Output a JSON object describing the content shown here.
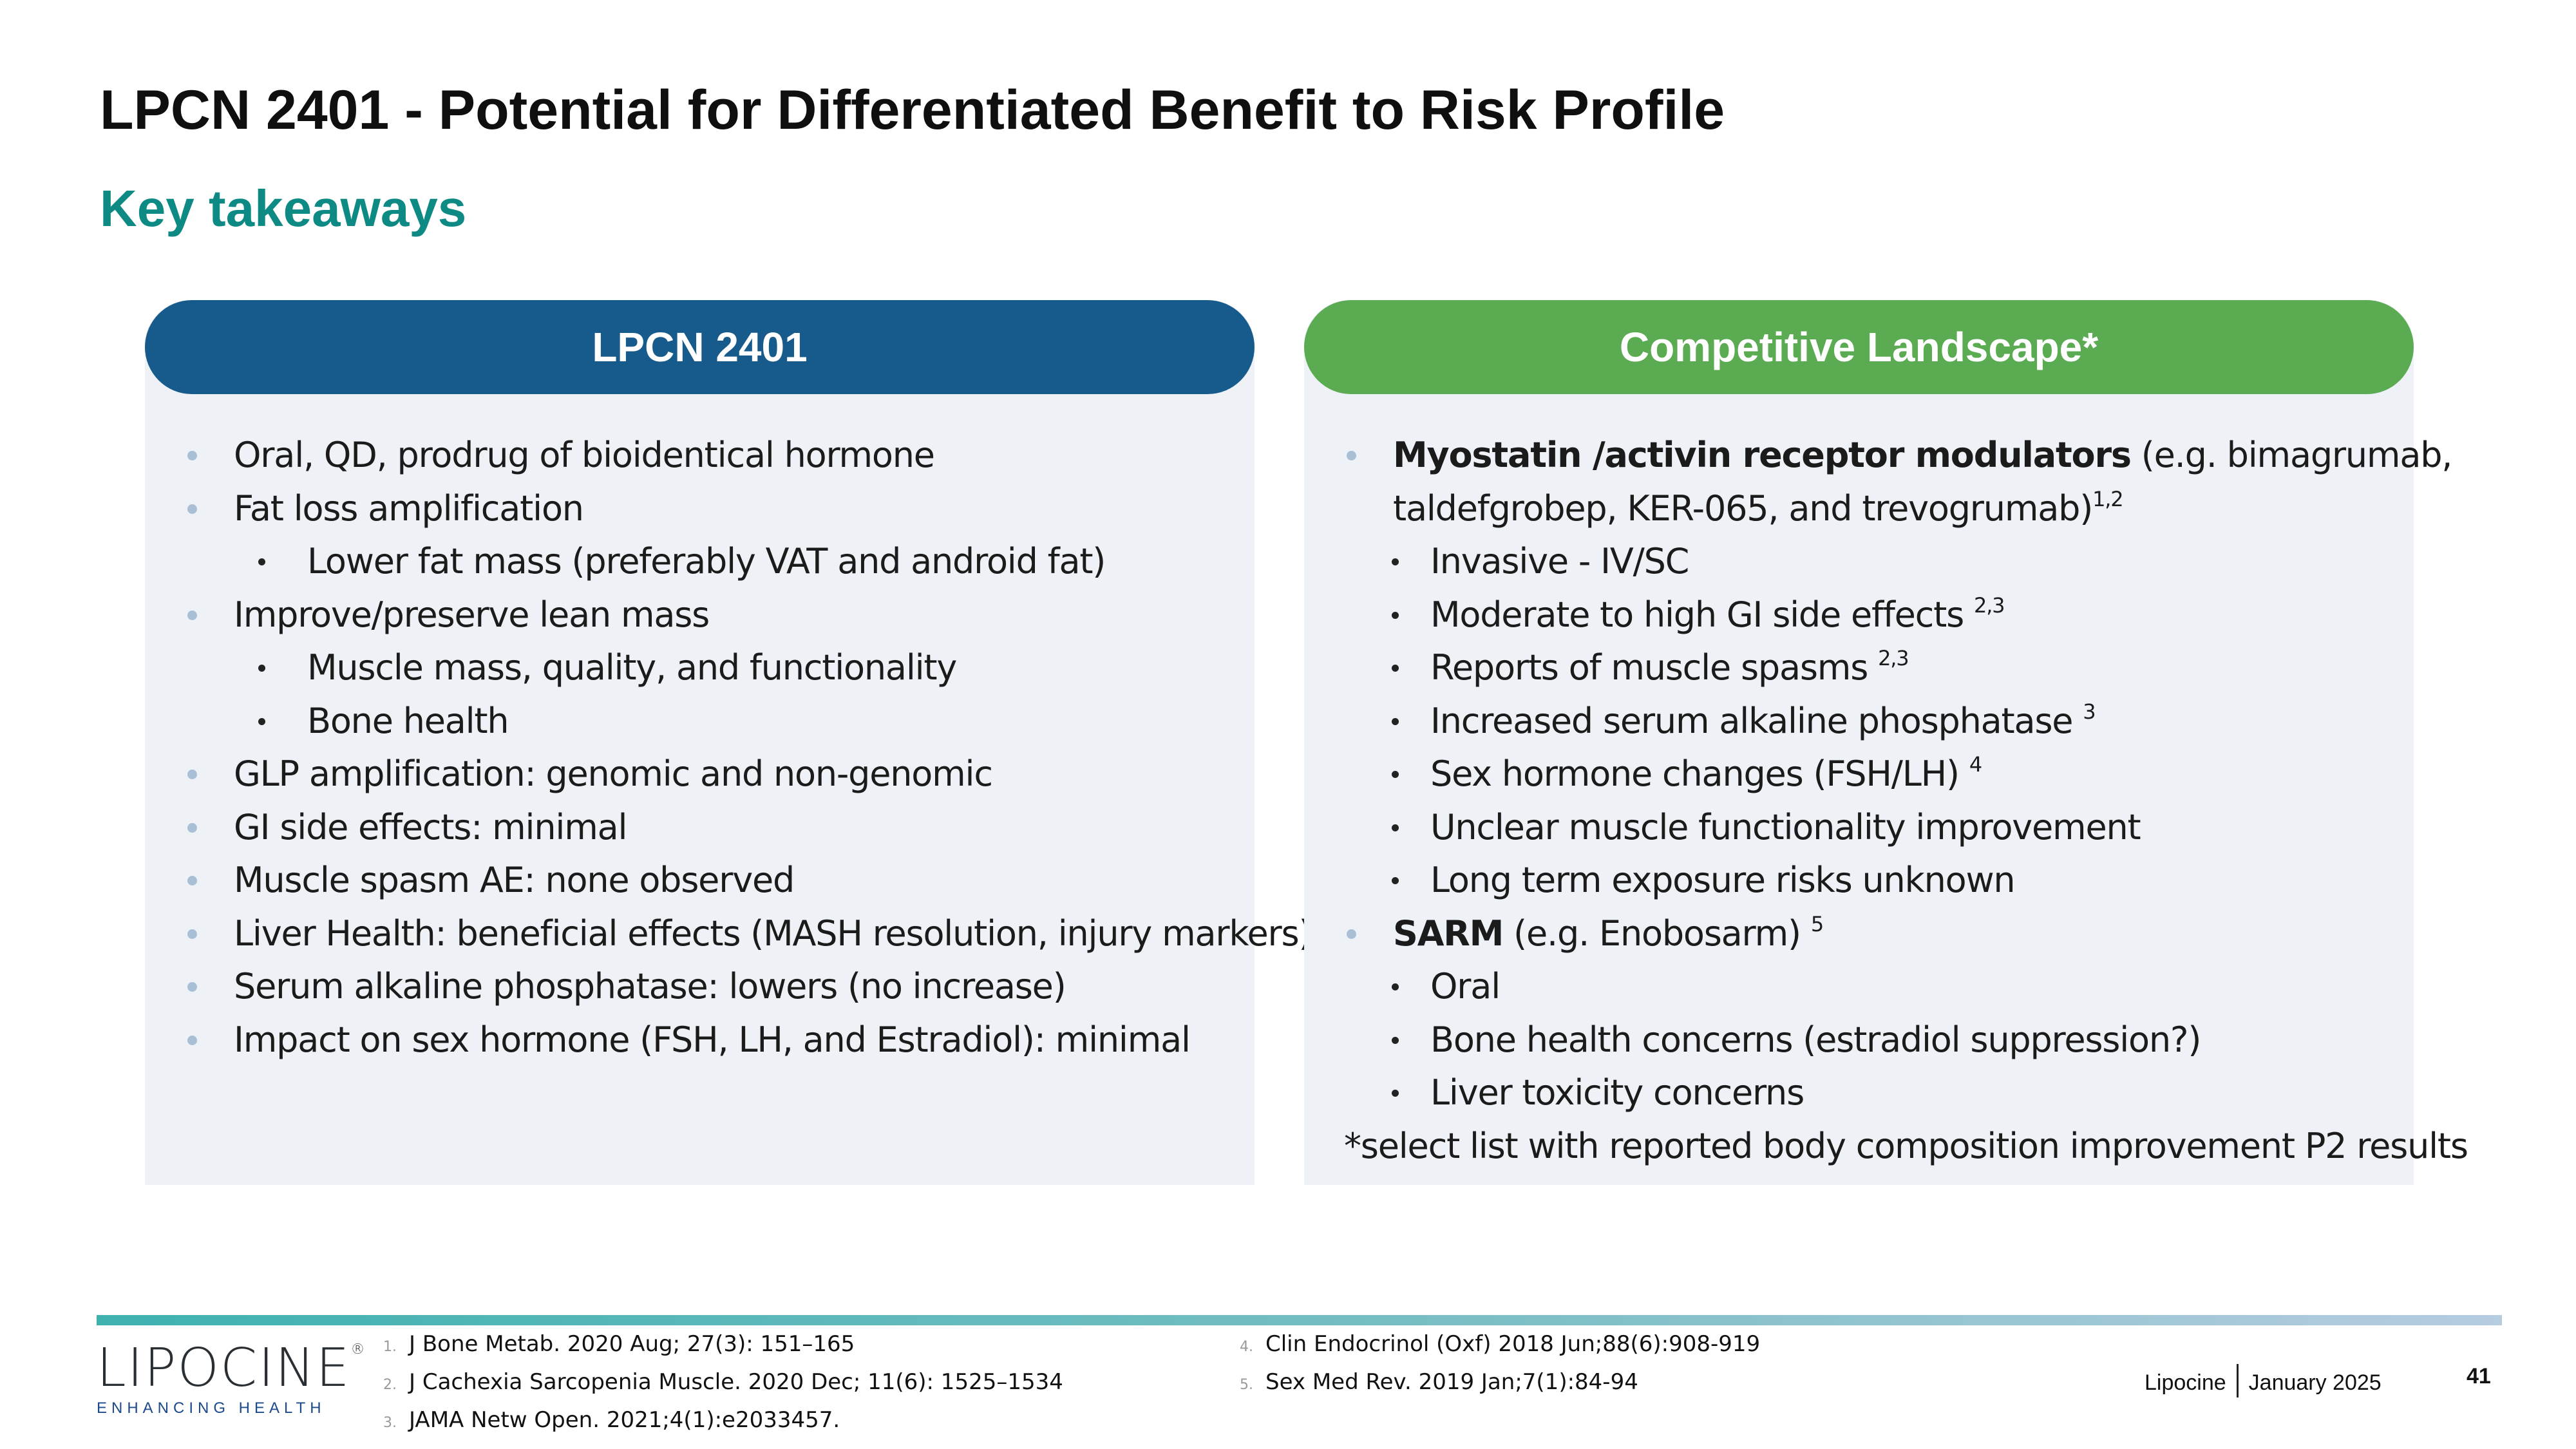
{
  "slide": {
    "title": "LPCN 2401 - Potential for Differentiated Benefit to Risk Profile",
    "subtitle": "Key takeaways"
  },
  "left_panel": {
    "header": "LPCN 2401",
    "items": [
      "Oral, QD, prodrug of bioidentical hormone",
      "Fat loss amplification",
      "Lower fat mass (preferably VAT and android fat)",
      "Improve/preserve lean mass",
      "Muscle mass, quality, and functionality",
      "Bone health",
      "GLP amplification: genomic and non-genomic",
      "GI side effects:  minimal",
      "Muscle spasm AE: none observed",
      "Liver Health:  beneficial effects (MASH resolution, injury markers)",
      "Serum alkaline phosphatase: lowers (no increase)",
      "Impact on sex hormone (FSH, LH, and Estradiol): minimal"
    ]
  },
  "right_panel": {
    "header": "Competitive Landscape*",
    "myostatin": {
      "bold": "Myostatin /activin receptor modulators",
      "rest_line1": " (e.g. bimagrumab,",
      "rest_line2": "taldefgrobep, KER-065, and trevogrumab)",
      "sup": "1,2"
    },
    "myostatin_items": [
      {
        "text": "Invasive - IV/SC",
        "sup": ""
      },
      {
        "text": "Moderate to high GI side effects ",
        "sup": "2,3"
      },
      {
        "text": "Reports of muscle spasms ",
        "sup": "2,3"
      },
      {
        "text": "Increased serum alkaline phosphatase ",
        "sup": "3"
      },
      {
        "text": "Sex hormone changes (FSH/LH) ",
        "sup": "4"
      },
      {
        "text": "Unclear muscle functionality improvement",
        "sup": ""
      },
      {
        "text": "Long term exposure risks unknown",
        "sup": ""
      }
    ],
    "sarm": {
      "bold": "SARM",
      "rest": " (e.g. Enobosarm) ",
      "sup": "5"
    },
    "sarm_items": [
      "Oral",
      "Bone health concerns (estradiol suppression?)",
      "Liver toxicity concerns"
    ],
    "note": "*select list with reported body composition improvement P2 results"
  },
  "logo": {
    "name": "LIPOCINE",
    "mark": "®",
    "tagline": "ENHANCING HEALTH"
  },
  "references": [
    {
      "n": "1.",
      "text": "J Bone Metab. 2020 Aug; 27(3): 151–165"
    },
    {
      "n": "2.",
      "text": "J Cachexia Sarcopenia Muscle. 2020 Dec; 11(6): 1525–1534"
    },
    {
      "n": "3.",
      "text": "JAMA Netw Open. 2021;4(1):e2033457."
    },
    {
      "n": "4.",
      "text": "Clin Endocrinol (Oxf) 2018 Jun;88(6):908-919"
    },
    {
      "n": "5.",
      "text": "Sex Med Rev. 2019 Jan;7(1):84-94"
    }
  ],
  "footer": {
    "company": "Lipocine",
    "date": "January 2025",
    "page": "41"
  },
  "colors": {
    "accent_teal": "#0e8a84",
    "left_header": "#175b8c",
    "right_header": "#5aab52",
    "panel_bg": "#eef2f6"
  }
}
